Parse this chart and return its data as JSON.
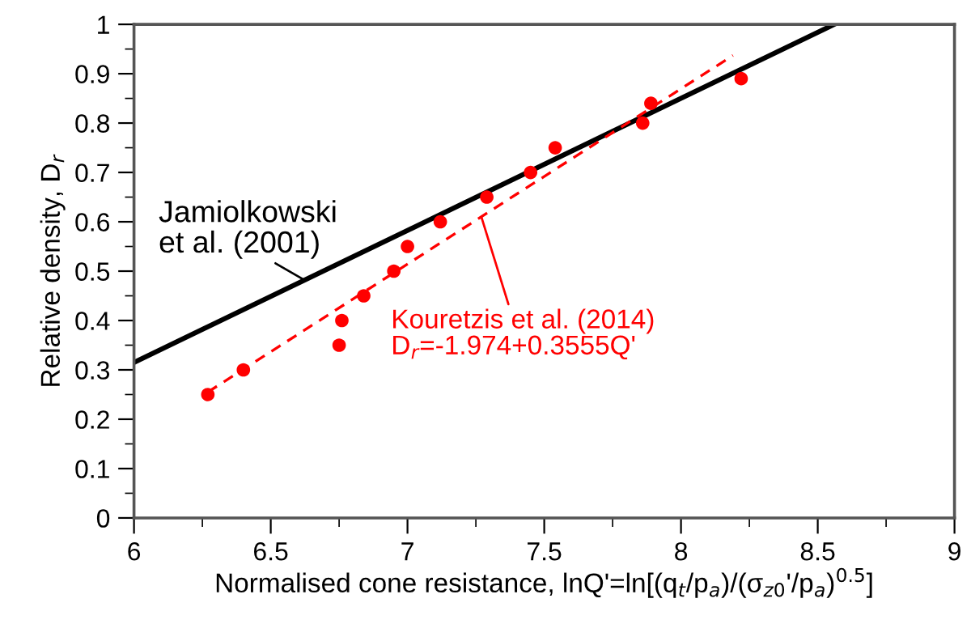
{
  "chart_data": {
    "type": "scatter",
    "xlabel": "Normalised cone resistance, lnQ'=ln[(q$_{t}$/p$_{a}$)/(σ$_{z0}$'/p$_{a}$)$^{0.5}$]",
    "ylabel": "Relative density, D$_{r}$",
    "series": [
      {
        "type": "line",
        "color": "#000000",
        "line_style": "solid",
        "marker": "none",
        "x": [
          6,
          8.56
        ],
        "values": [
          0.315,
          1.0
        ]
      },
      {
        "type": "line",
        "color": "#ff0000",
        "line_style": "dashed",
        "marker": "none",
        "x": [
          6.27,
          8.19
        ],
        "values": [
          0.255,
          0.937
        ]
      },
      {
        "color": "#ff0000",
        "marker": "circle",
        "x": [
          6.27,
          6.4,
          6.75,
          6.76,
          6.84,
          6.95,
          7.0,
          7.12,
          7.29,
          7.45,
          7.54,
          7.86,
          7.89,
          8.22
        ],
        "values": [
          0.25,
          0.3,
          0.35,
          0.4,
          0.45,
          0.5,
          0.55,
          0.6,
          0.65,
          0.7,
          0.75,
          0.8,
          0.84,
          0.89
        ]
      }
    ],
    "annotations": [
      {
        "text": "Jamiolkowski\net al. (2001)",
        "x": 6.62,
        "y": 0.483
      },
      {
        "text": "Kouretzis et al. (2014)\nD$_{r}$=-1.974+0.3555Q'",
        "x": 7.27,
        "y": 0.61
      }
    ],
    "xlim": [
      6,
      9
    ],
    "ylim": [
      0,
      1
    ],
    "xticks": [
      6,
      {
        "value": 6.25,
        "label": null
      },
      6.5,
      {
        "value": 6.75,
        "label": null
      },
      7,
      {
        "value": 7.25,
        "label": null
      },
      7.5,
      {
        "value": 7.75,
        "label": null
      },
      8,
      {
        "value": 8.25,
        "label": null
      },
      8.5,
      {
        "value": 8.75,
        "label": null
      },
      9
    ],
    "yticks": [
      0,
      {
        "value": 0.05,
        "label": null
      },
      0.1,
      {
        "value": 0.15,
        "label": null
      },
      0.2,
      {
        "value": 0.25,
        "label": null
      },
      0.3,
      {
        "value": 0.35,
        "label": null
      },
      0.4,
      {
        "value": 0.45,
        "label": null
      },
      0.5,
      {
        "value": 0.55,
        "label": null
      },
      0.6,
      {
        "value": 0.65,
        "label": null
      },
      0.7,
      {
        "value": 0.75,
        "label": null
      },
      0.8,
      {
        "value": 0.85,
        "label": null
      },
      0.9,
      {
        "value": 0.95,
        "label": null
      },
      1
    ],
    "grid": false,
    "legend": false
  }
}
